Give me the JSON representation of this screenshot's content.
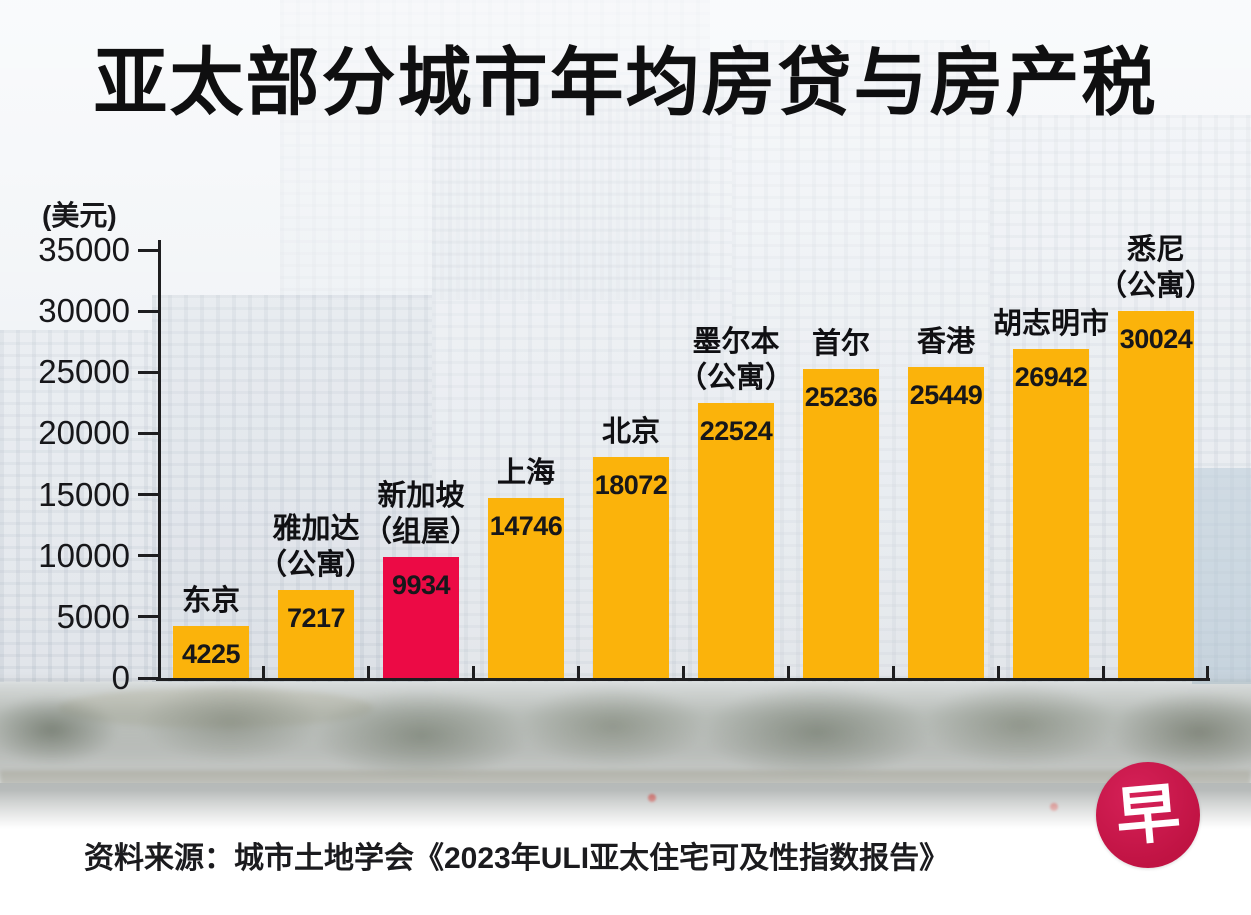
{
  "title": "亚太部分城市年均房贷与房产税",
  "source_line": "资料来源：城市土地学会《2023年ULI亚太住宅可及性指数报告》",
  "logo": {
    "char": "早",
    "bg_color": "#C01343",
    "fg_color": "#FFFFFF"
  },
  "colors": {
    "bar_yellow": "#FBB30B",
    "bar_red": "#EC0A45",
    "axis_ink": "#1E1E20"
  },
  "chart_data": {
    "type": "bar",
    "title": "亚太部分城市年均房贷与房产税",
    "unit": "(美元)",
    "ylabel": "(美元)",
    "ylim": [
      0,
      35000
    ],
    "yticks": [
      35000,
      30000,
      25000,
      20000,
      15000,
      10000,
      5000,
      0
    ],
    "grid": false,
    "legend": false,
    "categories": [
      "东京",
      "雅加达\n（公寓）",
      "新加坡\n（组屋）",
      "上海",
      "北京",
      "墨尔本\n（公寓）",
      "首尔",
      "香港",
      "胡志明市",
      "悉尼\n（公寓）"
    ],
    "values": [
      4225,
      7217,
      9934,
      14746,
      18072,
      22524,
      25236,
      25449,
      26942,
      30024
    ],
    "bar_color": "#FBB30B",
    "highlight_index": 2,
    "highlight_color": "#EC0A45",
    "source": "资料来源：城市土地学会《2023年ULI亚太住宅可及性指数报告》"
  }
}
